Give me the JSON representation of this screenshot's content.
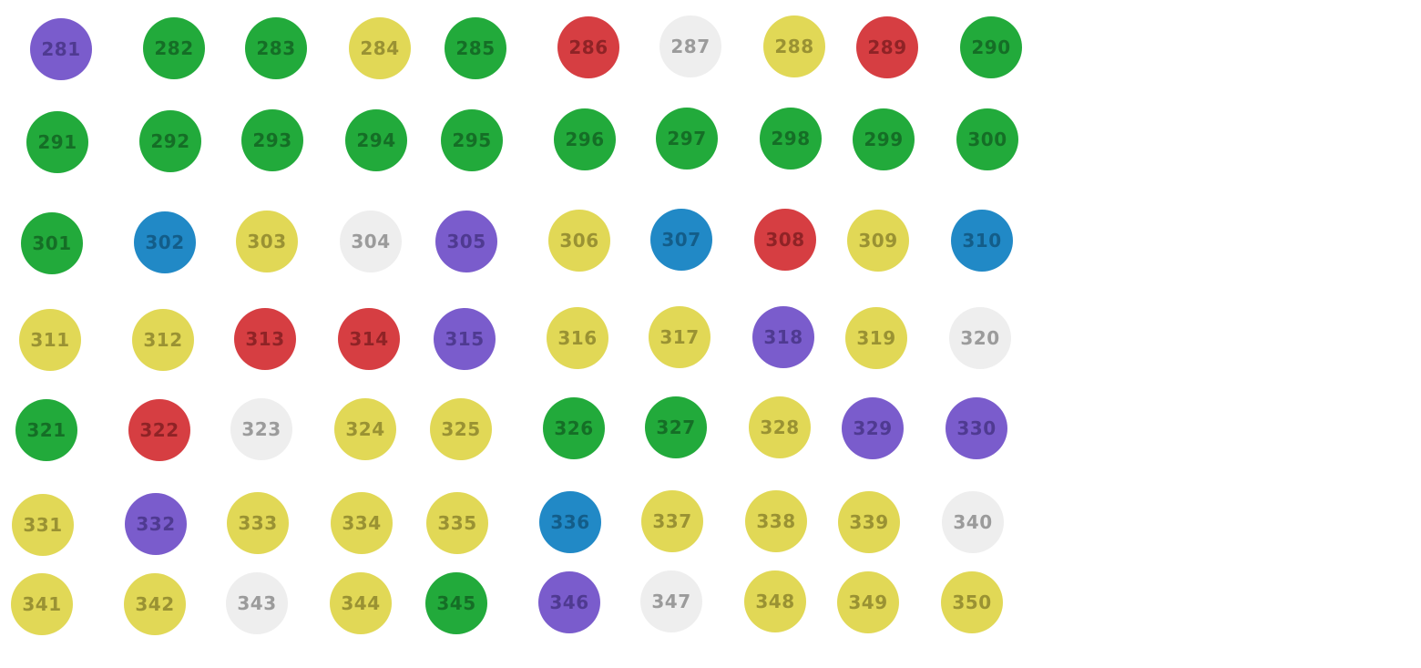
{
  "palette": {
    "purple": {
      "fill": "#7a5ccc",
      "text": "#4f3a91"
    },
    "green": {
      "fill": "#22aa3b",
      "text": "#156e26"
    },
    "yellow": {
      "fill": "#e1d856",
      "text": "#9a9233"
    },
    "red": {
      "fill": "#d63e42",
      "text": "#8f2326"
    },
    "white": {
      "fill": "#eeeeee",
      "text": "#9b9b9b"
    },
    "blue": {
      "fill": "#2189c6",
      "text": "#135d89"
    }
  },
  "rows": [
    [
      {
        "label": "281",
        "color": "purple"
      },
      {
        "label": "282",
        "color": "green"
      },
      {
        "label": "283",
        "color": "green"
      },
      {
        "label": "284",
        "color": "yellow"
      },
      {
        "label": "285",
        "color": "green"
      },
      {
        "label": "286",
        "color": "red"
      },
      {
        "label": "287",
        "color": "white"
      },
      {
        "label": "288",
        "color": "yellow"
      },
      {
        "label": "289",
        "color": "red"
      },
      {
        "label": "290",
        "color": "green"
      }
    ],
    [
      {
        "label": "291",
        "color": "green"
      },
      {
        "label": "292",
        "color": "green"
      },
      {
        "label": "293",
        "color": "green"
      },
      {
        "label": "294",
        "color": "green"
      },
      {
        "label": "295",
        "color": "green"
      },
      {
        "label": "296",
        "color": "green"
      },
      {
        "label": "297",
        "color": "green"
      },
      {
        "label": "298",
        "color": "green"
      },
      {
        "label": "299",
        "color": "green"
      },
      {
        "label": "300",
        "color": "green"
      }
    ],
    [
      {
        "label": "301",
        "color": "green"
      },
      {
        "label": "302",
        "color": "blue"
      },
      {
        "label": "303",
        "color": "yellow"
      },
      {
        "label": "304",
        "color": "white"
      },
      {
        "label": "305",
        "color": "purple"
      },
      {
        "label": "306",
        "color": "yellow"
      },
      {
        "label": "307",
        "color": "blue"
      },
      {
        "label": "308",
        "color": "red"
      },
      {
        "label": "309",
        "color": "yellow"
      },
      {
        "label": "310",
        "color": "blue"
      }
    ],
    [
      {
        "label": "311",
        "color": "yellow"
      },
      {
        "label": "312",
        "color": "yellow"
      },
      {
        "label": "313",
        "color": "red"
      },
      {
        "label": "314",
        "color": "red"
      },
      {
        "label": "315",
        "color": "purple"
      },
      {
        "label": "316",
        "color": "yellow"
      },
      {
        "label": "317",
        "color": "yellow"
      },
      {
        "label": "318",
        "color": "purple"
      },
      {
        "label": "319",
        "color": "yellow"
      },
      {
        "label": "320",
        "color": "white"
      }
    ],
    [
      {
        "label": "321",
        "color": "green"
      },
      {
        "label": "322",
        "color": "red"
      },
      {
        "label": "323",
        "color": "white"
      },
      {
        "label": "324",
        "color": "yellow"
      },
      {
        "label": "325",
        "color": "yellow"
      },
      {
        "label": "326",
        "color": "green"
      },
      {
        "label": "327",
        "color": "green"
      },
      {
        "label": "328",
        "color": "yellow"
      },
      {
        "label": "329",
        "color": "purple"
      },
      {
        "label": "330",
        "color": "purple"
      }
    ],
    [
      {
        "label": "331",
        "color": "yellow"
      },
      {
        "label": "332",
        "color": "purple"
      },
      {
        "label": "333",
        "color": "yellow"
      },
      {
        "label": "334",
        "color": "yellow"
      },
      {
        "label": "335",
        "color": "yellow"
      },
      {
        "label": "336",
        "color": "blue"
      },
      {
        "label": "337",
        "color": "yellow"
      },
      {
        "label": "338",
        "color": "yellow"
      },
      {
        "label": "339",
        "color": "yellow"
      },
      {
        "label": "340",
        "color": "white"
      }
    ],
    [
      {
        "label": "341",
        "color": "yellow"
      },
      {
        "label": "342",
        "color": "yellow"
      },
      {
        "label": "343",
        "color": "white"
      },
      {
        "label": "344",
        "color": "yellow"
      },
      {
        "label": "345",
        "color": "green"
      },
      {
        "label": "346",
        "color": "purple"
      },
      {
        "label": "347",
        "color": "white"
      },
      {
        "label": "348",
        "color": "yellow"
      },
      {
        "label": "349",
        "color": "yellow"
      },
      {
        "label": "350",
        "color": "yellow"
      }
    ]
  ]
}
